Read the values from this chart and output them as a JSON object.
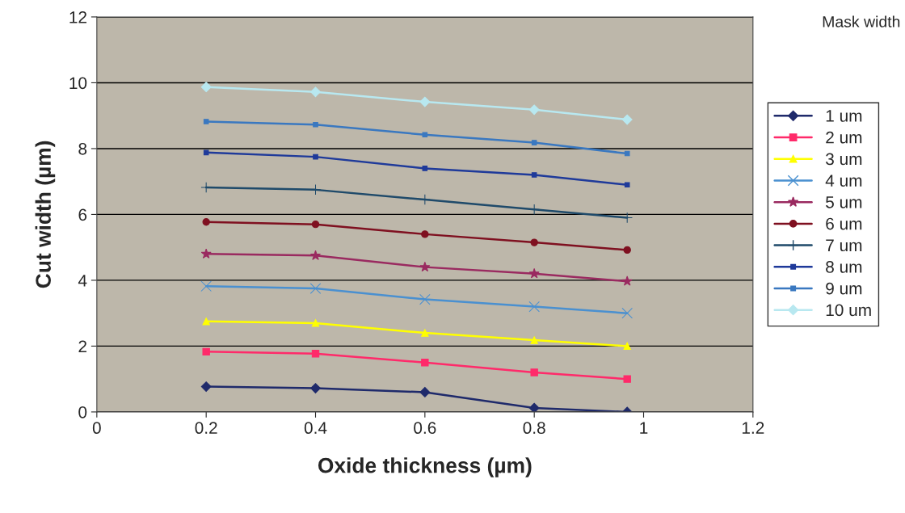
{
  "chart_data": {
    "type": "line",
    "xlabel": "Oxide thickness (µm)",
    "ylabel": "Cut width (µm)",
    "legend_title": "Mask width",
    "x": [
      0.2,
      0.4,
      0.6,
      0.8,
      0.97
    ],
    "series": [
      {
        "name": "1 um",
        "color": "#1f2a6b",
        "marker": "diamond",
        "values": [
          0.77,
          0.72,
          0.6,
          0.12,
          0.0
        ]
      },
      {
        "name": "2 um",
        "color": "#ff2a6a",
        "marker": "square",
        "values": [
          1.83,
          1.77,
          1.5,
          1.2,
          1.0
        ]
      },
      {
        "name": "3 um",
        "color": "#ffff00",
        "marker": "triangle",
        "values": [
          2.75,
          2.7,
          2.4,
          2.18,
          2.0
        ]
      },
      {
        "name": "4 um",
        "color": "#4a90d0",
        "marker": "cross",
        "values": [
          3.82,
          3.75,
          3.42,
          3.2,
          3.0
        ]
      },
      {
        "name": "5 um",
        "color": "#9a2a60",
        "marker": "star",
        "values": [
          4.8,
          4.75,
          4.4,
          4.2,
          3.97
        ]
      },
      {
        "name": "6 um",
        "color": "#7f1020",
        "marker": "circle",
        "values": [
          5.77,
          5.7,
          5.4,
          5.15,
          4.92
        ]
      },
      {
        "name": "7 um",
        "color": "#1f4a6a",
        "marker": "plus",
        "values": [
          6.82,
          6.75,
          6.45,
          6.15,
          5.9
        ]
      },
      {
        "name": "8 um",
        "color": "#1f3a9a",
        "marker": "square",
        "values": [
          7.88,
          7.75,
          7.4,
          7.2,
          6.9
        ]
      },
      {
        "name": "9 um",
        "color": "#3a78c0",
        "marker": "square",
        "values": [
          8.82,
          8.73,
          8.42,
          8.18,
          7.85
        ]
      },
      {
        "name": "10 um",
        "color": "#b8e8f0",
        "marker": "diamond",
        "values": [
          9.87,
          9.72,
          9.42,
          9.18,
          8.88
        ]
      }
    ],
    "xlim": [
      0,
      1.2
    ],
    "xticks": [
      0,
      0.2,
      0.4,
      0.6,
      0.8,
      1,
      1.2
    ],
    "ylim": [
      0,
      12
    ],
    "yticks": [
      0,
      2,
      4,
      6,
      8,
      10,
      12
    ],
    "grid": "y",
    "legend": "right"
  }
}
